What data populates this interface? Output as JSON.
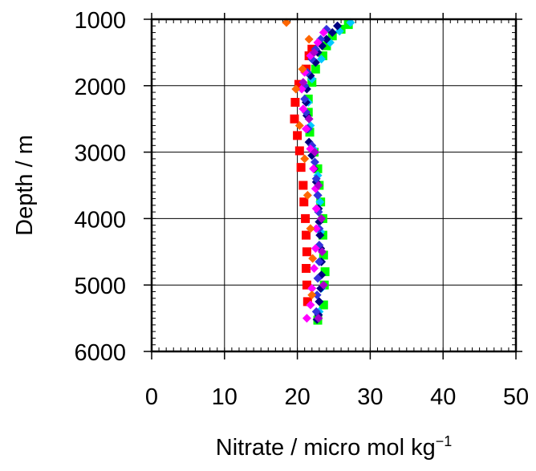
{
  "chart_data": {
    "type": "scatter",
    "title": "",
    "xlabel": "Nitrate / micro mol kg",
    "xlabel_superscript": "−1",
    "ylabel": "Depth / m",
    "xlim": [
      0,
      50
    ],
    "ylim": [
      1000,
      6000
    ],
    "y_inverted": true,
    "x_ticks": [
      "0",
      "10",
      "20",
      "30",
      "40",
      "50"
    ],
    "y_ticks": [
      "1000",
      "2000",
      "3000",
      "4000",
      "5000",
      "6000"
    ],
    "grid": true,
    "legend": "none",
    "series": [
      {
        "color": "#ff0000",
        "marker": "square",
        "points": [
          [
            22.0,
            1450
          ],
          [
            21.6,
            1550
          ],
          [
            21.2,
            1750
          ],
          [
            20.2,
            1980
          ],
          [
            19.7,
            2250
          ],
          [
            19.6,
            2500
          ],
          [
            20.0,
            2750
          ],
          [
            20.3,
            2980
          ],
          [
            20.5,
            3230
          ],
          [
            20.8,
            3500
          ],
          [
            20.9,
            3750
          ],
          [
            21.1,
            4000
          ],
          [
            21.2,
            4250
          ],
          [
            21.3,
            4500
          ],
          [
            21.2,
            4750
          ],
          [
            21.3,
            5000
          ],
          [
            21.4,
            5250
          ]
        ]
      },
      {
        "color": "#00ff00",
        "marker": "square",
        "points": [
          [
            27.0,
            1080
          ],
          [
            26.0,
            1150
          ],
          [
            24.8,
            1250
          ],
          [
            24.0,
            1400
          ],
          [
            23.5,
            1550
          ],
          [
            22.5,
            1750
          ],
          [
            22.0,
            1950
          ],
          [
            21.5,
            2200
          ],
          [
            21.5,
            2400
          ],
          [
            21.7,
            2700
          ],
          [
            22.3,
            3000
          ],
          [
            22.8,
            3250
          ],
          [
            23.0,
            3500
          ],
          [
            23.2,
            3750
          ],
          [
            23.5,
            4000
          ],
          [
            23.5,
            4250
          ],
          [
            23.6,
            4550
          ],
          [
            23.8,
            4800
          ],
          [
            23.7,
            5000
          ],
          [
            23.6,
            5300
          ],
          [
            22.8,
            5530
          ]
        ]
      },
      {
        "color": "#00c8ff",
        "marker": "diamond",
        "points": [
          [
            27.3,
            1050
          ],
          [
            25.8,
            1180
          ],
          [
            24.5,
            1350
          ],
          [
            23.3,
            1600
          ],
          [
            22.0,
            1900
          ],
          [
            21.5,
            2250
          ],
          [
            21.8,
            2600
          ],
          [
            22.2,
            2950
          ],
          [
            22.8,
            3350
          ],
          [
            23.1,
            3750
          ],
          [
            23.2,
            4200
          ],
          [
            23.3,
            4650
          ],
          [
            23.3,
            5050
          ],
          [
            23.0,
            5400
          ]
        ]
      },
      {
        "color": "#000080",
        "marker": "diamond",
        "points": [
          [
            25.5,
            1100
          ],
          [
            24.8,
            1200
          ],
          [
            24.0,
            1300
          ],
          [
            23.4,
            1400
          ],
          [
            22.8,
            1500
          ],
          [
            22.5,
            1650
          ],
          [
            21.8,
            1850
          ],
          [
            21.3,
            2050
          ],
          [
            21.2,
            2250
          ],
          [
            21.3,
            2450
          ],
          [
            21.4,
            2650
          ],
          [
            21.6,
            2850
          ],
          [
            22.0,
            3050
          ],
          [
            22.3,
            3250
          ],
          [
            22.6,
            3450
          ],
          [
            22.8,
            3650
          ],
          [
            22.9,
            3850
          ],
          [
            23.0,
            4050
          ],
          [
            23.1,
            4250
          ],
          [
            23.2,
            4450
          ],
          [
            23.3,
            4650
          ],
          [
            23.3,
            4850
          ],
          [
            23.2,
            5050
          ],
          [
            23.0,
            5250
          ],
          [
            22.9,
            5450
          ],
          [
            22.7,
            5520
          ]
        ]
      },
      {
        "color": "#3333dd",
        "marker": "diamond",
        "points": [
          [
            24.0,
            1150
          ],
          [
            23.2,
            1300
          ],
          [
            22.5,
            1450
          ],
          [
            22.0,
            1600
          ],
          [
            21.4,
            1800
          ],
          [
            21.0,
            2000
          ],
          [
            21.0,
            2200
          ],
          [
            21.2,
            2400
          ],
          [
            21.5,
            2650
          ],
          [
            22.0,
            2900
          ],
          [
            22.4,
            3150
          ],
          [
            22.6,
            3400
          ],
          [
            22.8,
            3650
          ],
          [
            22.9,
            3900
          ],
          [
            23.0,
            4150
          ],
          [
            23.0,
            4400
          ],
          [
            23.0,
            4650
          ],
          [
            22.8,
            4900
          ],
          [
            22.7,
            5150
          ],
          [
            22.6,
            5400
          ]
        ]
      },
      {
        "color": "#ff00ff",
        "marker": "diamond",
        "points": [
          [
            23.6,
            1200
          ],
          [
            22.8,
            1350
          ],
          [
            21.8,
            1550
          ],
          [
            21.0,
            1800
          ],
          [
            20.6,
            2050
          ],
          [
            20.8,
            2350
          ],
          [
            21.2,
            2650
          ],
          [
            21.8,
            2950
          ],
          [
            22.2,
            3250
          ],
          [
            22.5,
            3550
          ],
          [
            22.6,
            3850
          ],
          [
            22.6,
            4150
          ],
          [
            22.5,
            4450
          ],
          [
            22.3,
            4750
          ],
          [
            22.0,
            5050
          ],
          [
            21.8,
            5300
          ],
          [
            21.3,
            5500
          ]
        ]
      },
      {
        "color": "#aa00cc",
        "marker": "diamond",
        "points": [
          [
            22.3,
            1500
          ],
          [
            20.8,
            1950
          ],
          [
            21.6,
            2500
          ],
          [
            22.4,
            3000
          ],
          [
            22.9,
            3500
          ],
          [
            23.3,
            4000
          ],
          [
            23.4,
            4500
          ],
          [
            23.6,
            5000
          ],
          [
            22.9,
            5500
          ]
        ]
      },
      {
        "color": "#ff6600",
        "marker": "diamond",
        "points": [
          [
            18.5,
            1050
          ],
          [
            21.6,
            1300
          ],
          [
            20.7,
            1750
          ],
          [
            19.8,
            2050
          ],
          [
            20.3,
            2600
          ],
          [
            21.0,
            3100
          ],
          [
            21.4,
            3650
          ],
          [
            21.8,
            4150
          ],
          [
            22.1,
            4600
          ],
          [
            22.0,
            5150
          ]
        ]
      }
    ]
  }
}
